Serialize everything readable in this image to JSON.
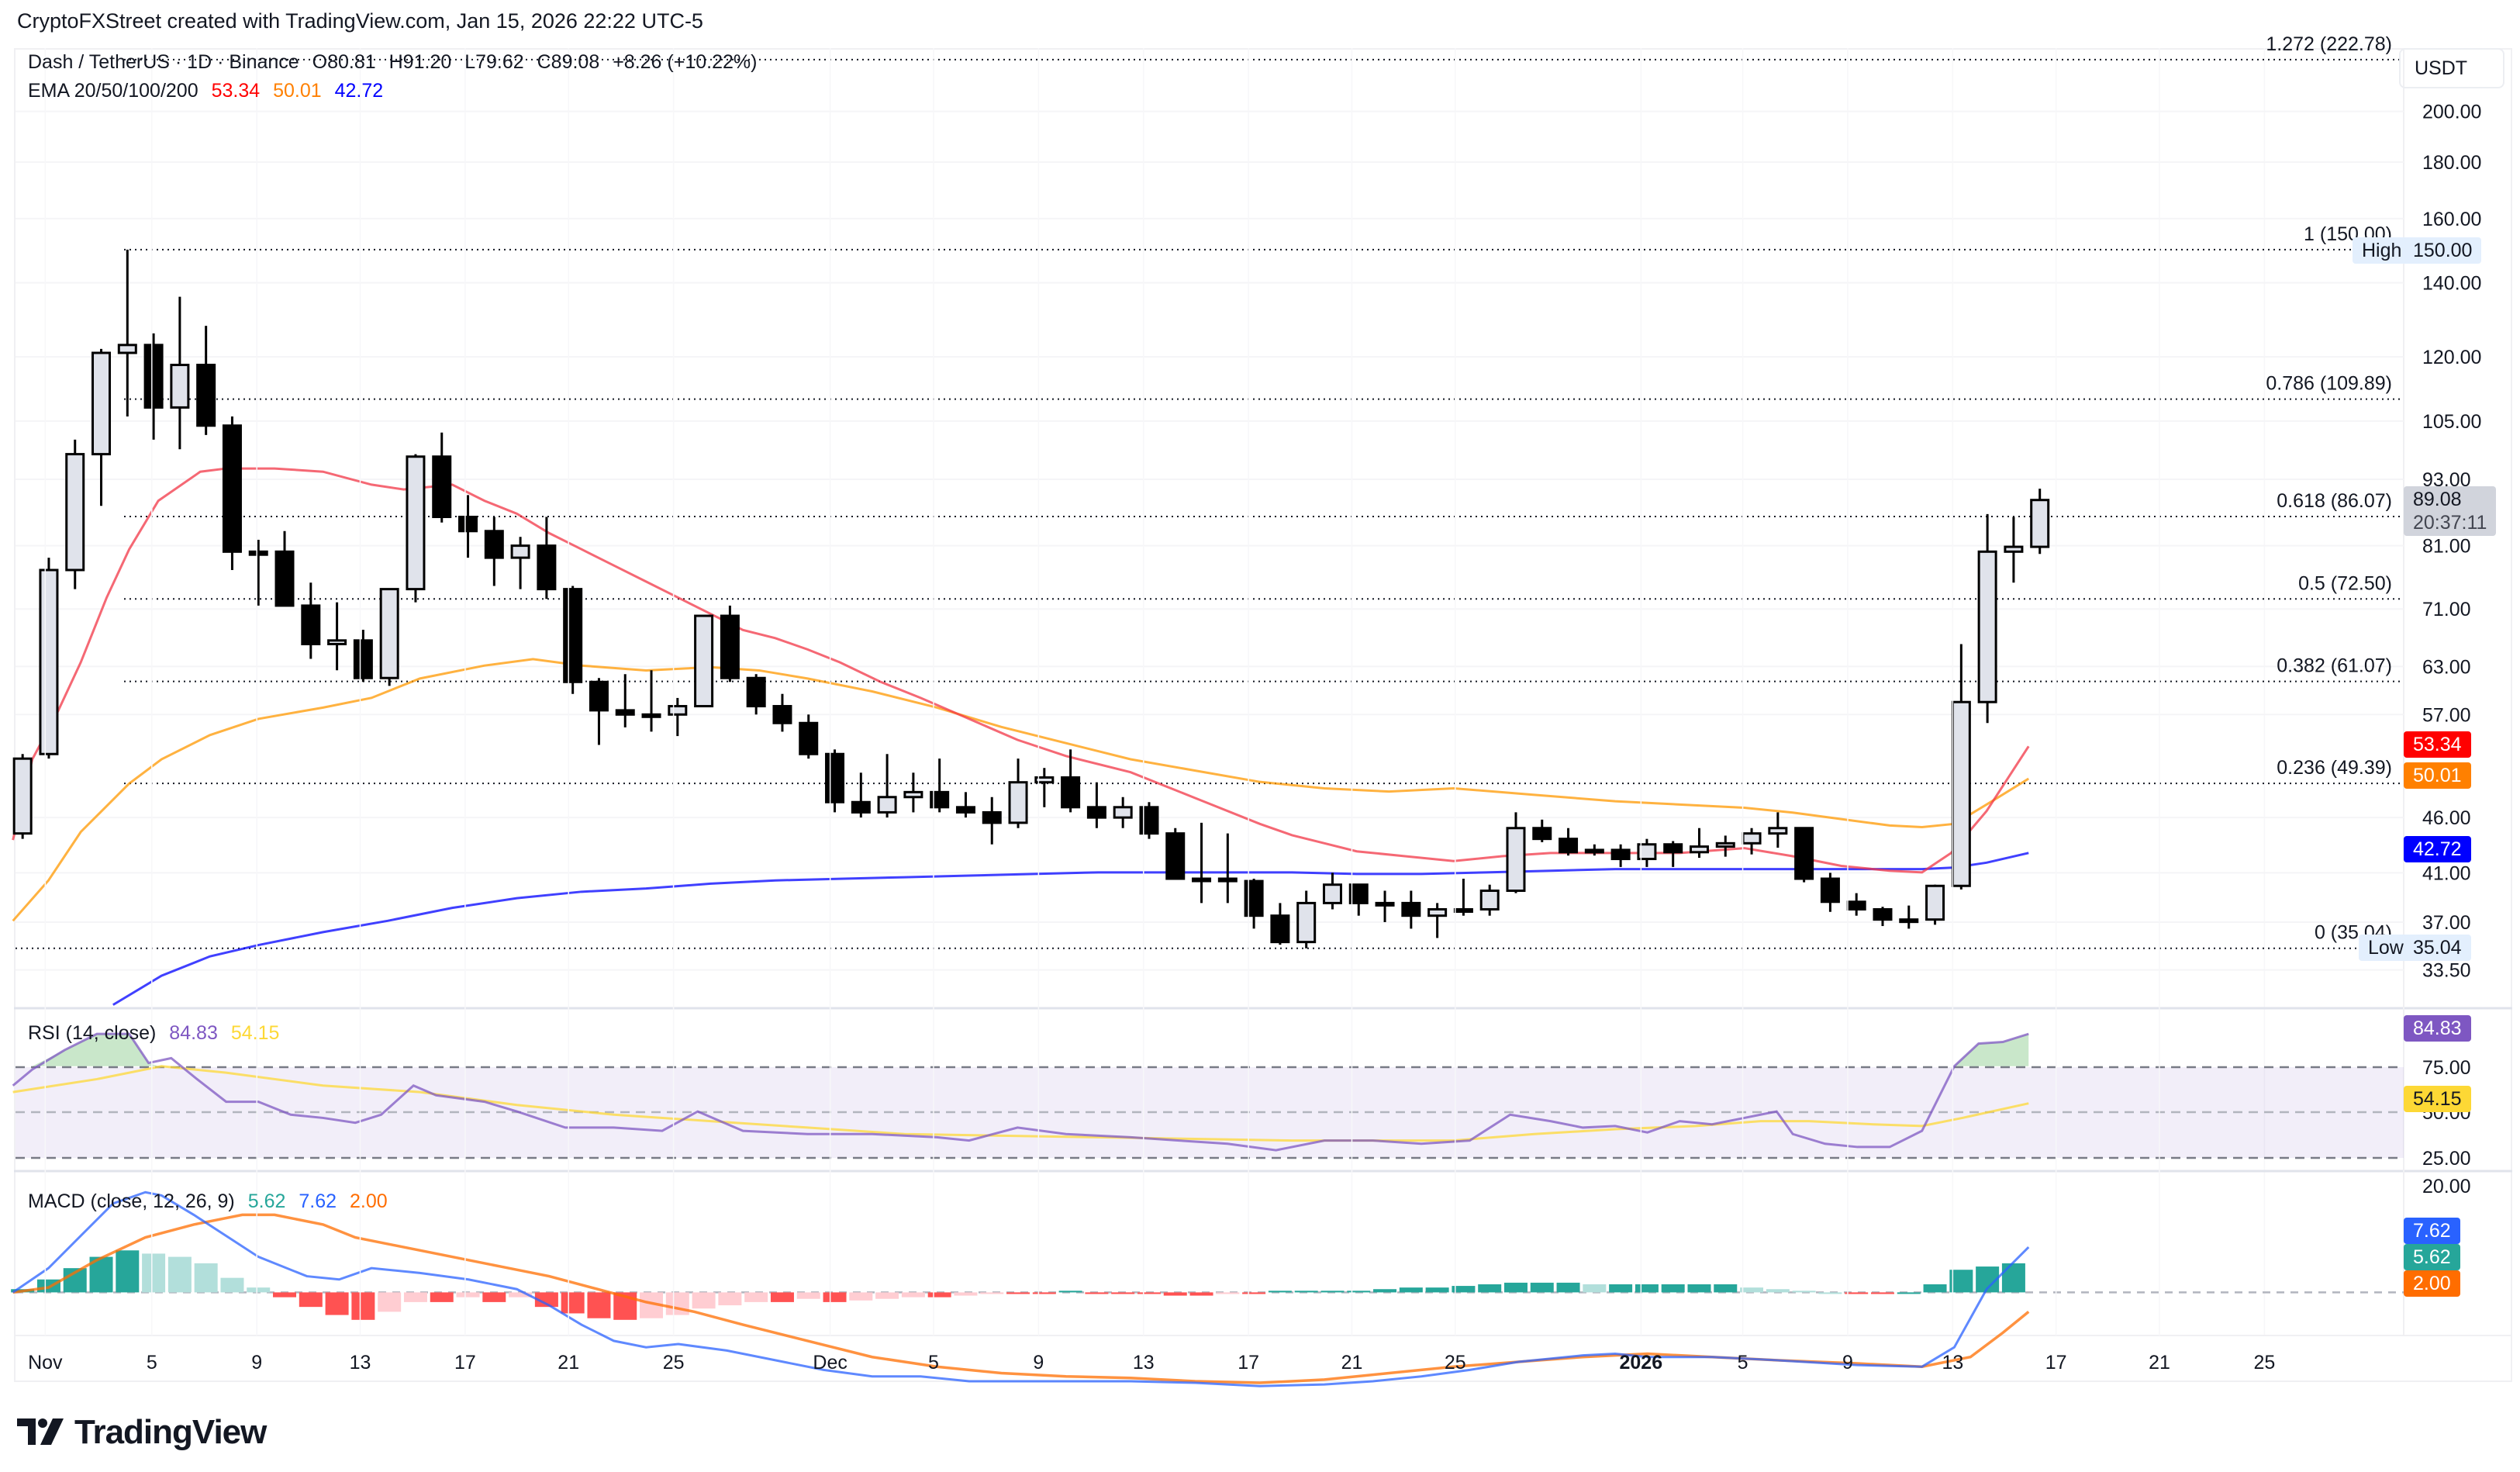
{
  "header": {
    "credit": "CryptoFXStreet created with TradingView.com, Jan 15, 2026 22:22 UTC-5"
  },
  "symbol_legend": {
    "symbol": "Dash / TetherUS · 1D · Binance",
    "open": "O80.81",
    "high": "H91.20",
    "low": "L79.62",
    "close": "C89.08",
    "change": "+8.26 (+10.22%)"
  },
  "ema_legend": {
    "label": "EMA 20/50/100/200",
    "ema20": "53.34",
    "ema50": "50.01",
    "ema100": "42.72"
  },
  "rsi_legend": {
    "label": "RSI (14, close)",
    "rsi": "84.83",
    "rsi_ma": "54.15"
  },
  "macd_legend": {
    "label": "MACD (close, 12, 26, 9)",
    "hist": "5.62",
    "macd": "7.62",
    "signal": "2.00"
  },
  "price_axis": {
    "currency": "USDT",
    "ticks": [
      "200.00",
      "180.00",
      "160.00",
      "140.00",
      "120.00",
      "105.00",
      "93.00",
      "81.00",
      "71.00",
      "63.00",
      "57.00",
      "46.00",
      "41.00",
      "37.00",
      "33.50"
    ],
    "last_price": "89.08",
    "countdown": "20:37:11",
    "high_label": "High",
    "high_value": "150.00",
    "low_label": "Low",
    "low_value": "35.04",
    "ema20_badge": "53.34",
    "ema50_badge": "50.01",
    "ema100_badge": "42.72"
  },
  "rsi_axis": {
    "ticks": [
      "75.00",
      "50.00",
      "25.00"
    ],
    "rsi_badge": "84.83",
    "rsi_ma_badge": "54.15"
  },
  "macd_axis": {
    "ticks": [
      "20.00"
    ],
    "macd_badge": "7.62",
    "hist_badge": "5.62",
    "signal_badge": "2.00"
  },
  "time_axis": {
    "labels": [
      "Nov",
      "5",
      "9",
      "13",
      "17",
      "21",
      "25",
      "Dec",
      "5",
      "9",
      "13",
      "17",
      "21",
      "25",
      "2026",
      "5",
      "9",
      "13",
      "17",
      "21",
      "25"
    ]
  },
  "fib_levels": [
    {
      "label": "1.272 (222.78)",
      "price": 222.78
    },
    {
      "label": "1 (150.00)",
      "price": 150.0
    },
    {
      "label": "0.786 (109.89)",
      "price": 109.89
    },
    {
      "label": "0.618 (86.07)",
      "price": 86.07
    },
    {
      "label": "0.5 (72.50)",
      "price": 72.5
    },
    {
      "label": "0.382 (61.07)",
      "price": 61.07
    },
    {
      "label": "0.236 (49.39)",
      "price": 49.39
    },
    {
      "label": "0 (35.04)",
      "price": 35.04
    }
  ],
  "colors": {
    "ema20": "#f23645",
    "ema50": "#ff9800",
    "ema100": "#0000ff",
    "ema_badge_red": "#ff0000",
    "ema_badge_orange": "#ff8000",
    "ema_badge_blue": "#0000ff",
    "rsi": "#7e57c2",
    "rsi_ma": "#fdd835",
    "macd": "#2962ff",
    "signal": "#ff6d00",
    "hist_up": "#26a69a",
    "hist_up_light": "#b2dfdb",
    "hist_down": "#ff5252",
    "hist_down_light": "#ffcdd2",
    "candle_up_fill": "#e0e3eb",
    "candle_down_fill": "#000000"
  },
  "brand": {
    "logo_text": "TradingView"
  },
  "chart_data": {
    "type": "candlestick",
    "title": "Dash / TetherUS · 1D · Binance",
    "xlabel": "",
    "ylabel": "USDT",
    "y_scale": "log",
    "ylim": [
      32,
      225
    ],
    "x_tick_labels": [
      "Nov",
      "5",
      "9",
      "13",
      "17",
      "21",
      "25",
      "Dec",
      "5",
      "9",
      "13",
      "17",
      "21",
      "25",
      "2026",
      "5",
      "9",
      "13",
      "17",
      "21",
      "25"
    ],
    "candles": [
      {
        "d": "Oct 31",
        "o": 44.5,
        "h": 52.5,
        "l": 44.0,
        "c": 52.0
      },
      {
        "d": "Nov 1",
        "o": 52.5,
        "h": 79.0,
        "l": 52.0,
        "c": 77.0
      },
      {
        "d": "Nov 2",
        "o": 77.0,
        "h": 101.0,
        "l": 74.0,
        "c": 98.0
      },
      {
        "d": "Nov 3",
        "o": 98.0,
        "h": 122.0,
        "l": 88.0,
        "c": 121.0
      },
      {
        "d": "Nov 4",
        "o": 121.0,
        "h": 150.0,
        "l": 106.0,
        "c": 123.0
      },
      {
        "d": "Nov 5",
        "o": 123.0,
        "h": 126.0,
        "l": 101.0,
        "c": 108.0
      },
      {
        "d": "Nov 6",
        "o": 108.0,
        "h": 136.0,
        "l": 99.0,
        "c": 118.0
      },
      {
        "d": "Nov 7",
        "o": 118.0,
        "h": 128.0,
        "l": 102.0,
        "c": 104.0
      },
      {
        "d": "Nov 8",
        "o": 104.0,
        "h": 106.0,
        "l": 77.0,
        "c": 80.0
      },
      {
        "d": "Nov 9",
        "o": 80.0,
        "h": 82.0,
        "l": 71.5,
        "c": 79.5
      },
      {
        "d": "Nov 10",
        "o": 80.0,
        "h": 83.5,
        "l": 72.0,
        "c": 71.5
      },
      {
        "d": "Nov 11",
        "o": 71.5,
        "h": 75.0,
        "l": 64.0,
        "c": 66.0
      },
      {
        "d": "Nov 12",
        "o": 66.0,
        "h": 72.0,
        "l": 62.5,
        "c": 66.5
      },
      {
        "d": "Nov 13",
        "o": 66.5,
        "h": 68.0,
        "l": 61.0,
        "c": 61.5
      },
      {
        "d": "Nov 14",
        "o": 61.5,
        "h": 74.0,
        "l": 60.5,
        "c": 74.0
      },
      {
        "d": "Nov 15",
        "o": 74.0,
        "h": 98.0,
        "l": 72.0,
        "c": 97.5
      },
      {
        "d": "Nov 16",
        "o": 97.5,
        "h": 102.5,
        "l": 85.0,
        "c": 86.0
      },
      {
        "d": "Nov 17",
        "o": 86.0,
        "h": 90.0,
        "l": 79.0,
        "c": 83.5
      },
      {
        "d": "Nov 18",
        "o": 83.5,
        "h": 86.0,
        "l": 74.5,
        "c": 79.0
      },
      {
        "d": "Nov 19",
        "o": 79.0,
        "h": 82.5,
        "l": 74.0,
        "c": 81.0
      },
      {
        "d": "Nov 20",
        "o": 81.0,
        "h": 86.0,
        "l": 72.5,
        "c": 74.0
      },
      {
        "d": "Nov 21",
        "o": 74.0,
        "h": 74.5,
        "l": 59.5,
        "c": 61.0
      },
      {
        "d": "Nov 22",
        "o": 61.0,
        "h": 61.5,
        "l": 53.5,
        "c": 57.5
      },
      {
        "d": "Nov 23",
        "o": 57.5,
        "h": 62.0,
        "l": 55.5,
        "c": 57.0
      },
      {
        "d": "Nov 24",
        "o": 57.0,
        "h": 62.5,
        "l": 55.0,
        "c": 57.0
      },
      {
        "d": "Nov 25",
        "o": 57.0,
        "h": 59.0,
        "l": 54.5,
        "c": 58.0
      },
      {
        "d": "Nov 26",
        "o": 58.0,
        "h": 70.0,
        "l": 58.0,
        "c": 70.0
      },
      {
        "d": "Nov 27",
        "o": 70.0,
        "h": 71.5,
        "l": 61.0,
        "c": 61.5
      },
      {
        "d": "Nov 28",
        "o": 61.5,
        "h": 62.0,
        "l": 57.0,
        "c": 58.0
      },
      {
        "d": "Nov 29",
        "o": 58.0,
        "h": 59.5,
        "l": 55.0,
        "c": 56.0
      },
      {
        "d": "Nov 30",
        "o": 56.0,
        "h": 57.0,
        "l": 52.0,
        "c": 52.5
      },
      {
        "d": "Dec 1",
        "o": 52.5,
        "h": 53.0,
        "l": 46.5,
        "c": 47.5
      },
      {
        "d": "Dec 2",
        "o": 47.5,
        "h": 50.5,
        "l": 46.0,
        "c": 46.5
      },
      {
        "d": "Dec 3",
        "o": 46.5,
        "h": 52.5,
        "l": 46.0,
        "c": 48.0
      },
      {
        "d": "Dec 4",
        "o": 48.0,
        "h": 50.5,
        "l": 46.5,
        "c": 48.5
      },
      {
        "d": "Dec 5",
        "o": 48.5,
        "h": 52.0,
        "l": 46.5,
        "c": 47.0
      },
      {
        "d": "Dec 6",
        "o": 47.0,
        "h": 48.5,
        "l": 46.0,
        "c": 46.5
      },
      {
        "d": "Dec 7",
        "o": 46.5,
        "h": 48.0,
        "l": 43.5,
        "c": 45.5
      },
      {
        "d": "Dec 8",
        "o": 45.5,
        "h": 52.0,
        "l": 45.0,
        "c": 49.5
      },
      {
        "d": "Dec 9",
        "o": 49.5,
        "h": 51.0,
        "l": 47.0,
        "c": 50.0
      },
      {
        "d": "Dec 10",
        "o": 50.0,
        "h": 53.0,
        "l": 46.5,
        "c": 47.0
      },
      {
        "d": "Dec 11",
        "o": 47.0,
        "h": 49.5,
        "l": 45.0,
        "c": 46.0
      },
      {
        "d": "Dec 12",
        "o": 46.0,
        "h": 48.0,
        "l": 45.0,
        "c": 47.0
      },
      {
        "d": "Dec 13",
        "o": 47.0,
        "h": 47.5,
        "l": 44.0,
        "c": 44.5
      },
      {
        "d": "Dec 14",
        "o": 44.5,
        "h": 45.0,
        "l": 40.5,
        "c": 40.5
      },
      {
        "d": "Dec 15",
        "o": 40.5,
        "h": 45.5,
        "l": 38.5,
        "c": 40.5
      },
      {
        "d": "Dec 16",
        "o": 40.5,
        "h": 44.5,
        "l": 38.5,
        "c": 40.3
      },
      {
        "d": "Dec 17",
        "o": 40.3,
        "h": 40.5,
        "l": 36.5,
        "c": 37.5
      },
      {
        "d": "Dec 18",
        "o": 37.5,
        "h": 38.5,
        "l": 35.3,
        "c": 35.5
      },
      {
        "d": "Dec 19",
        "o": 35.5,
        "h": 39.5,
        "l": 35.04,
        "c": 38.5
      },
      {
        "d": "Dec 20",
        "o": 38.5,
        "h": 41.0,
        "l": 38.0,
        "c": 40.0
      },
      {
        "d": "Dec 21",
        "o": 40.0,
        "h": 40.0,
        "l": 37.5,
        "c": 38.5
      },
      {
        "d": "Dec 22",
        "o": 38.5,
        "h": 39.5,
        "l": 37.0,
        "c": 38.5
      },
      {
        "d": "Dec 23",
        "o": 38.5,
        "h": 39.5,
        "l": 36.5,
        "c": 37.5
      },
      {
        "d": "Dec 24",
        "o": 37.5,
        "h": 38.5,
        "l": 35.8,
        "c": 38.0
      },
      {
        "d": "Dec 25",
        "o": 38.0,
        "h": 40.5,
        "l": 37.5,
        "c": 38.0
      },
      {
        "d": "Dec 26",
        "o": 38.0,
        "h": 40.0,
        "l": 37.5,
        "c": 39.5
      },
      {
        "d": "Dec 27",
        "o": 39.5,
        "h": 46.5,
        "l": 39.3,
        "c": 45.0
      },
      {
        "d": "Dec 28",
        "o": 45.0,
        "h": 45.8,
        "l": 43.7,
        "c": 44.0
      },
      {
        "d": "Dec 29",
        "o": 44.0,
        "h": 45.0,
        "l": 42.5,
        "c": 42.8
      },
      {
        "d": "Dec 30",
        "o": 42.8,
        "h": 43.5,
        "l": 42.5,
        "c": 43.0
      },
      {
        "d": "Dec 31",
        "o": 43.0,
        "h": 43.5,
        "l": 41.5,
        "c": 42.2
      },
      {
        "d": "Jan 1",
        "o": 42.2,
        "h": 44.0,
        "l": 41.5,
        "c": 43.5
      },
      {
        "d": "Jan 2",
        "o": 43.5,
        "h": 43.8,
        "l": 41.5,
        "c": 42.8
      },
      {
        "d": "Jan 3",
        "o": 42.8,
        "h": 45.0,
        "l": 42.3,
        "c": 43.3
      },
      {
        "d": "Jan 4",
        "o": 43.3,
        "h": 44.3,
        "l": 42.4,
        "c": 43.6
      },
      {
        "d": "Jan 5",
        "o": 43.6,
        "h": 45.0,
        "l": 42.6,
        "c": 44.5
      },
      {
        "d": "Jan 6",
        "o": 44.5,
        "h": 46.5,
        "l": 43.2,
        "c": 45.0
      },
      {
        "d": "Jan 7",
        "o": 45.0,
        "h": 45.0,
        "l": 40.2,
        "c": 40.5
      },
      {
        "d": "Jan 8",
        "o": 40.5,
        "h": 41.0,
        "l": 37.8,
        "c": 38.6
      },
      {
        "d": "Jan 9",
        "o": 38.6,
        "h": 39.3,
        "l": 37.5,
        "c": 38.0
      },
      {
        "d": "Jan 10",
        "o": 38.0,
        "h": 38.2,
        "l": 36.7,
        "c": 37.2
      },
      {
        "d": "Jan 11",
        "o": 37.2,
        "h": 38.3,
        "l": 36.5,
        "c": 37.2
      },
      {
        "d": "Jan 12",
        "o": 37.2,
        "h": 40.0,
        "l": 36.8,
        "c": 39.9
      },
      {
        "d": "Jan 13",
        "o": 39.9,
        "h": 66.0,
        "l": 39.6,
        "c": 58.5
      },
      {
        "d": "Jan 14",
        "o": 58.5,
        "h": 86.5,
        "l": 56.0,
        "c": 80.0
      },
      {
        "d": "Jan 15",
        "o": 80.0,
        "h": 86.0,
        "l": 75.0,
        "c": 80.81
      },
      {
        "d": "Jan 16",
        "o": 80.81,
        "h": 91.2,
        "l": 79.62,
        "c": 89.08
      }
    ],
    "series": [
      {
        "name": "EMA 20",
        "color": "#f23645",
        "last": 53.34
      },
      {
        "name": "EMA 50",
        "color": "#ff9800",
        "last": 50.01
      },
      {
        "name": "EMA 100",
        "color": "#0000ff",
        "last": 42.72
      }
    ],
    "fibonacci": [
      {
        "level": 1.272,
        "price": 222.78
      },
      {
        "level": 1,
        "price": 150.0
      },
      {
        "level": 0.786,
        "price": 109.89
      },
      {
        "level": 0.618,
        "price": 86.07
      },
      {
        "level": 0.5,
        "price": 72.5
      },
      {
        "level": 0.382,
        "price": 61.07
      },
      {
        "level": 0.236,
        "price": 49.39
      },
      {
        "level": 0,
        "price": 35.04
      }
    ],
    "indicators": {
      "rsi": {
        "period": 14,
        "value": 84.83,
        "ma": 54.15,
        "levels": [
          75,
          50,
          25
        ]
      },
      "macd": {
        "fast": 12,
        "slow": 26,
        "signal_period": 9,
        "histogram": 5.62,
        "macd": 7.62,
        "signal": 2.0
      }
    },
    "last_price": 89.08,
    "high": 150.0,
    "low": 35.04,
    "grid": true
  }
}
